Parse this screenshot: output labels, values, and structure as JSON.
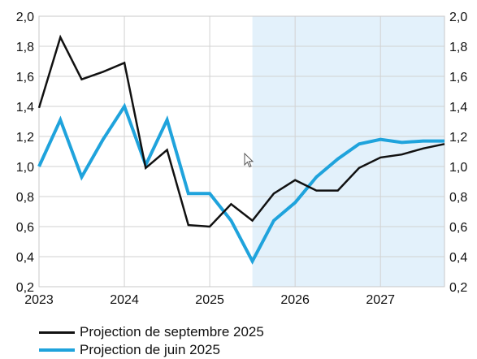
{
  "chart_data": {
    "type": "line",
    "ylim": [
      0.2,
      2.0
    ],
    "xlim": [
      2023.0,
      2027.75
    ],
    "y_ticks": [
      "0,2",
      "0,4",
      "0,6",
      "0,8",
      "1,0",
      "1,2",
      "1,4",
      "1,6",
      "1,8",
      "2,0"
    ],
    "x_ticks": [
      "2023",
      "2024",
      "2025",
      "2026",
      "2027"
    ],
    "grid": true,
    "projection_shading_from": 2025.5,
    "shading_color": "#e3f1fb",
    "legend_position": "bottom-left",
    "series": [
      {
        "name": "Projection de septembre 2025",
        "color": "#111111",
        "x": [
          2023.0,
          2023.25,
          2023.5,
          2023.75,
          2024.0,
          2024.25,
          2024.5,
          2024.75,
          2025.0,
          2025.25,
          2025.5,
          2025.75,
          2026.0,
          2026.25,
          2026.5,
          2026.75,
          2027.0,
          2027.25,
          2027.5,
          2027.75
        ],
        "values": [
          1.39,
          1.86,
          1.58,
          1.63,
          1.69,
          0.99,
          1.11,
          0.61,
          0.6,
          0.75,
          0.64,
          0.82,
          0.91,
          0.84,
          0.84,
          0.99,
          1.06,
          1.08,
          1.12,
          1.15
        ]
      },
      {
        "name": "Projection de juin 2025",
        "color": "#1fa3dc",
        "x": [
          2023.0,
          2023.25,
          2023.5,
          2023.75,
          2024.0,
          2024.25,
          2024.5,
          2024.75,
          2025.0,
          2025.25,
          2025.5,
          2025.75,
          2026.0,
          2026.25,
          2026.5,
          2026.75,
          2027.0,
          2027.25,
          2027.5,
          2027.75
        ],
        "values": [
          1.0,
          1.31,
          0.93,
          1.18,
          1.4,
          1.01,
          1.31,
          0.82,
          0.82,
          0.64,
          0.37,
          0.64,
          0.76,
          0.93,
          1.05,
          1.15,
          1.18,
          1.16,
          1.17,
          1.17
        ]
      }
    ]
  }
}
